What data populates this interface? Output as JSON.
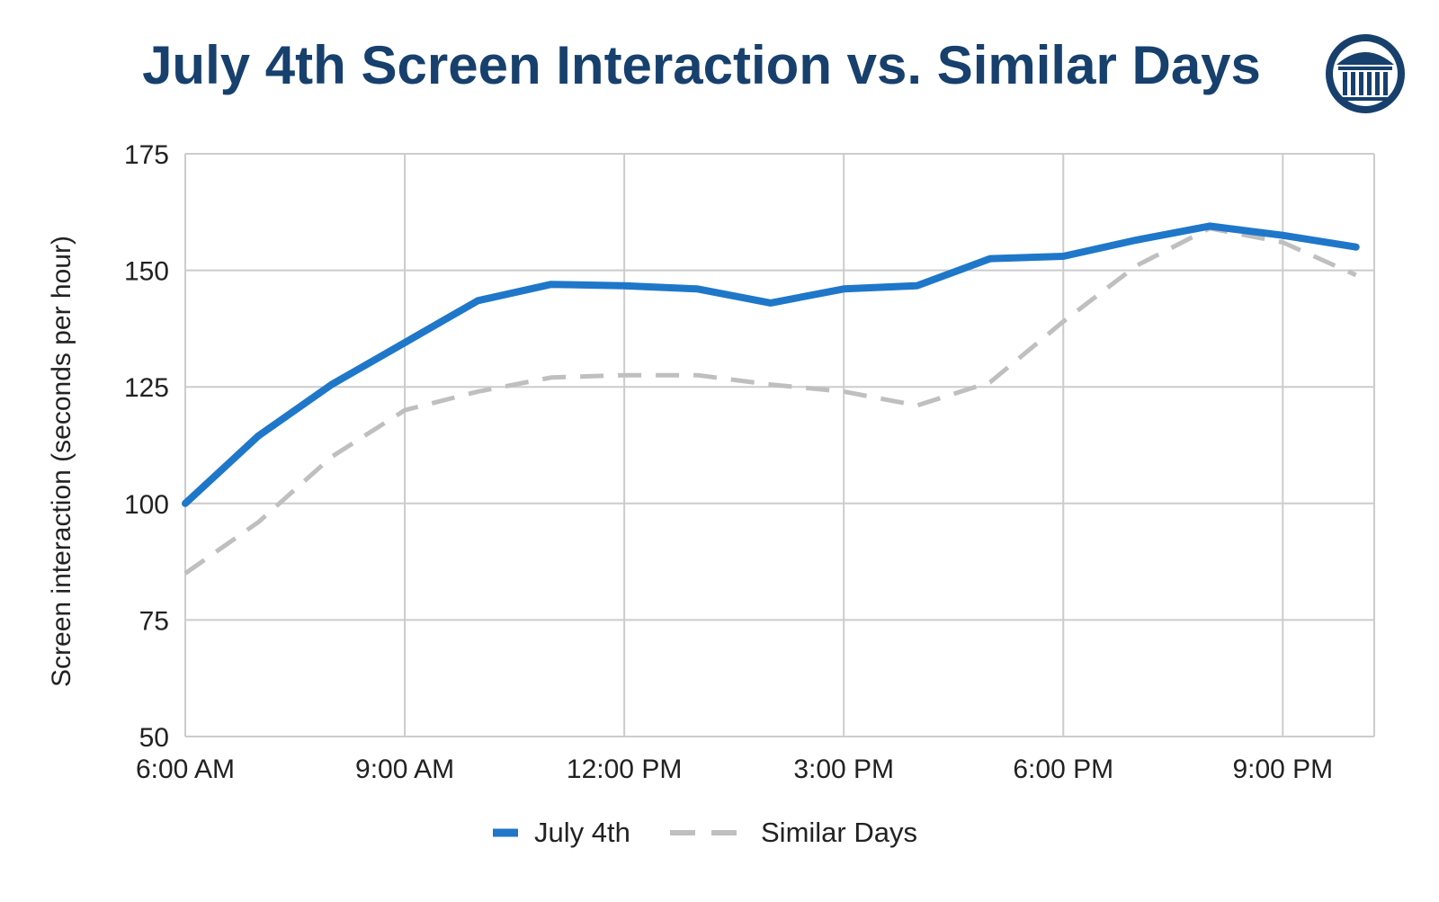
{
  "colors": {
    "title": "#17406d",
    "july4": "#1f77c9",
    "similar": "#bfbfbf",
    "grid": "#cccccc",
    "logo": "#17406d"
  },
  "logo": {
    "icon": "columned-building-seal-icon"
  },
  "chart_data": {
    "type": "line",
    "title": "July 4th Screen Interaction vs. Similar Days",
    "ylabel": "Screen interaction (seconds per hour)",
    "xlabel": "",
    "ylim": [
      50,
      175
    ],
    "yticks": [
      50,
      75,
      100,
      125,
      150,
      175
    ],
    "xlim": [
      6,
      22.25
    ],
    "xticks": [
      6,
      9,
      12,
      15,
      18,
      21
    ],
    "xtick_labels": [
      "6:00 AM",
      "9:00 AM",
      "12:00 PM",
      "3:00 PM",
      "6:00 PM",
      "9:00 PM"
    ],
    "grid": true,
    "legend_position": "bottom",
    "x": [
      6,
      7,
      8,
      9,
      10,
      11,
      12,
      13,
      14,
      15,
      16,
      17,
      18,
      19,
      20,
      21,
      22
    ],
    "series": [
      {
        "name": "July 4th",
        "style": "solid",
        "values": [
          100,
          114.5,
          125.5,
          134.5,
          143.5,
          147,
          146.7,
          146,
          143,
          146,
          146.7,
          152.5,
          153,
          156.5,
          159.5,
          157.5,
          155
        ]
      },
      {
        "name": "Similar Days",
        "style": "dashed",
        "values": [
          85,
          96,
          110,
          120,
          124,
          127,
          127.5,
          127.5,
          125.5,
          124,
          121,
          126,
          139,
          151,
          159,
          156,
          149
        ]
      }
    ]
  }
}
